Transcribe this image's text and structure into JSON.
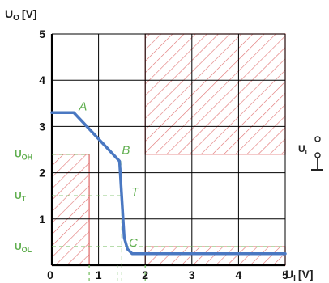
{
  "chart_data": {
    "type": "line",
    "title": "",
    "xlabel": "U_I [V]",
    "ylabel": "U_O [V]",
    "xlabel_parts": {
      "main": "U",
      "sub": "I",
      "unit": "[V]"
    },
    "ylabel_parts": {
      "main": "U",
      "sub": "O",
      "unit": "[V]"
    },
    "xlim": [
      0,
      5
    ],
    "ylim": [
      0,
      5
    ],
    "x_ticks": [
      "0",
      "1",
      "2",
      "3",
      "4",
      "5"
    ],
    "y_ticks": [
      "1",
      "2",
      "3",
      "4",
      "5"
    ],
    "grid": true,
    "series": [
      {
        "color": "#4a78c2",
        "x": [
          0,
          0.47,
          1.45,
          1.55,
          1.62,
          1.72,
          1.8,
          5.0
        ],
        "y": [
          3.3,
          3.3,
          2.25,
          0.6,
          0.35,
          0.25,
          0.25,
          0.25
        ]
      }
    ],
    "annotations": [
      {
        "text": "A",
        "x": 0.58,
        "y": 3.35
      },
      {
        "text": "B",
        "x": 1.5,
        "y": 2.4
      },
      {
        "text": "T",
        "x": 1.7,
        "y": 1.5
      },
      {
        "text": "C",
        "x": 1.65,
        "y": 0.4
      }
    ],
    "thresholds": [
      {
        "main": "U",
        "sub": "OH",
        "axis": "y",
        "value": 2.4
      },
      {
        "main": "U",
        "sub": "T",
        "axis": "y",
        "value": 1.5
      },
      {
        "main": "U",
        "sub": "OL",
        "axis": "y",
        "value": 0.4
      }
    ],
    "forbidden_regions": [
      {
        "x": [
          0,
          0.8
        ],
        "y": [
          0,
          2.4
        ]
      },
      {
        "x": [
          2.0,
          5.0
        ],
        "y": [
          0,
          0.4
        ]
      },
      {
        "x": [
          2.0,
          5.0
        ],
        "y": [
          2.4,
          5.0
        ]
      }
    ],
    "input_dashes_x": [
      0.8,
      1.4,
      1.5,
      2.0
    ],
    "input_terminal_label": {
      "main": "U",
      "sub": "I"
    },
    "colors": {
      "curve": "#4a78c2",
      "hatch": "#e07070",
      "guides": "#6fbb5a",
      "grid": "#000000"
    }
  }
}
